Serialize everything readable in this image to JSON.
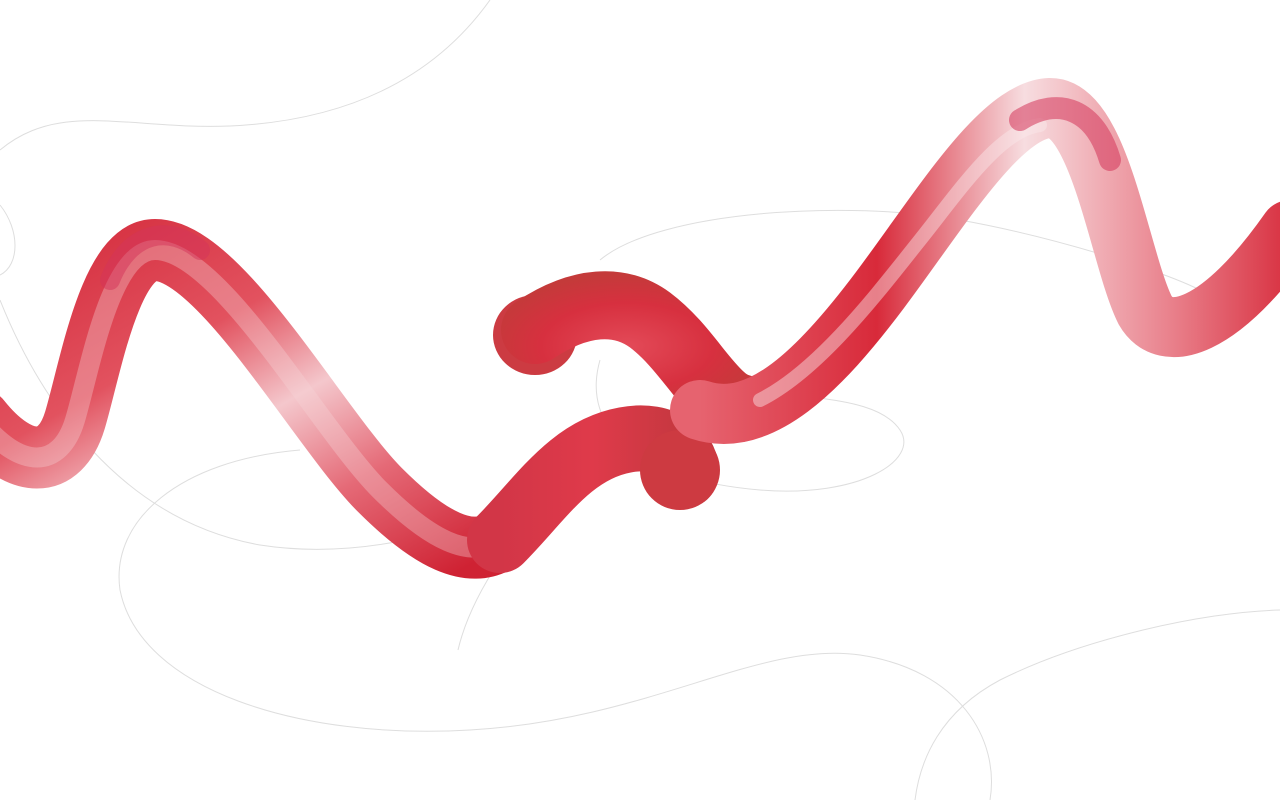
{
  "scene": {
    "description_name": "abstract-red-ribbon-artwork",
    "colors": {
      "background": "#ffffff",
      "ribbon_dark": "#c9202f",
      "ribbon_mid": "#e04a5a",
      "ribbon_light": "#f6cfd3",
      "ribbon_highlight": "#fbe6e8",
      "ribbon_shadow": "#b8283a",
      "outline_gray": "#d9d9d9"
    }
  }
}
